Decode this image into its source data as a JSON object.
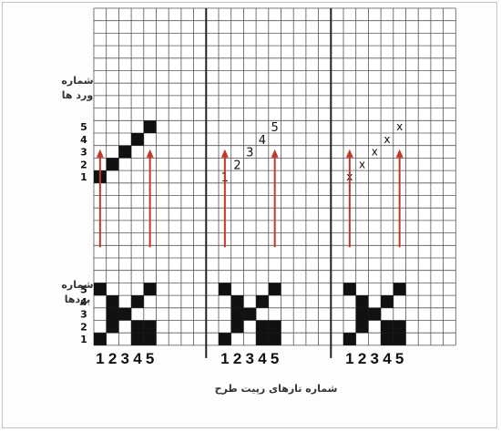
{
  "pick_label": [
    "شماره",
    "ورد ها"
  ],
  "weft_label": [
    "شماره",
    "پودها"
  ],
  "caption": "شماره تارهای رپیت طرح",
  "row_numbers": [
    "1",
    "2",
    "3",
    "4",
    "5"
  ],
  "warp_numbers": [
    "1",
    "2",
    "3",
    "4",
    "5"
  ],
  "colors": {
    "ink": "#111111",
    "grid": "#555555",
    "arrow": "#c0392b",
    "divider": "#222222"
  },
  "panels": [
    {
      "top_style": "filled",
      "top_marks": [
        [
          1,
          1
        ],
        [
          2,
          2
        ],
        [
          3,
          3
        ],
        [
          4,
          4
        ],
        [
          5,
          5
        ]
      ],
      "weave": [
        [
          1,
          0,
          0,
          1,
          1
        ],
        [
          0,
          1,
          0,
          1,
          1
        ],
        [
          0,
          1,
          1,
          0,
          0
        ],
        [
          0,
          1,
          0,
          1,
          0
        ],
        [
          1,
          0,
          0,
          0,
          1
        ]
      ]
    },
    {
      "top_style": "digit",
      "top_marks": [
        [
          1,
          1
        ],
        [
          2,
          2
        ],
        [
          3,
          3
        ],
        [
          4,
          4
        ],
        [
          5,
          5
        ]
      ],
      "weave": [
        [
          1,
          0,
          0,
          1,
          1
        ],
        [
          0,
          1,
          0,
          1,
          1
        ],
        [
          0,
          1,
          1,
          0,
          0
        ],
        [
          0,
          1,
          0,
          1,
          0
        ],
        [
          1,
          0,
          0,
          0,
          1
        ]
      ]
    },
    {
      "top_style": "cross",
      "top_marks": [
        [
          1,
          1
        ],
        [
          2,
          2
        ],
        [
          3,
          3
        ],
        [
          4,
          4
        ],
        [
          5,
          5
        ]
      ],
      "top_glyph": "x",
      "weave": [
        [
          1,
          0,
          0,
          1,
          1
        ],
        [
          0,
          1,
          0,
          1,
          1
        ],
        [
          0,
          1,
          1,
          0,
          0
        ],
        [
          0,
          1,
          0,
          1,
          0
        ],
        [
          1,
          0,
          0,
          0,
          1
        ]
      ]
    }
  ]
}
